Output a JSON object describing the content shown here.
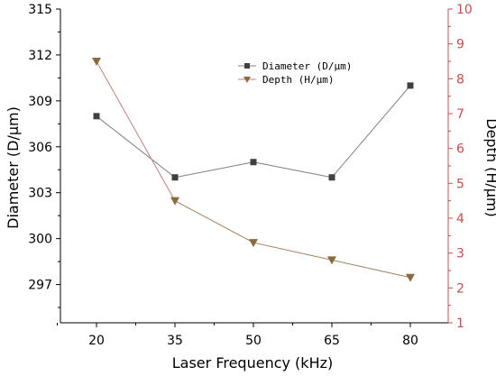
{
  "chart_data": {
    "type": "line",
    "title": "",
    "xlabel": "Laser Frequency (kHz)",
    "categories": [
      "20",
      "35",
      "50",
      "65",
      "80"
    ],
    "y_left": {
      "label": "Diameter (D/μm)",
      "lim": [
        294.5,
        315
      ],
      "ticks": [
        297,
        300,
        303,
        306,
        309,
        312,
        315
      ],
      "color": "#000000"
    },
    "y_right": {
      "label": "Depth (H/μm)",
      "lim": [
        1,
        10
      ],
      "ticks": [
        1,
        2,
        3,
        4,
        5,
        6,
        7,
        8,
        9,
        10
      ],
      "color": "#c0504d"
    },
    "series": [
      {
        "name": "Diameter (D/μm)",
        "axis": "left",
        "values": [
          308,
          304,
          305,
          304,
          310
        ],
        "color": "#808080",
        "marker_color": "#404040",
        "marker": "square"
      },
      {
        "name": "Depth (H/μm)",
        "axis": "right",
        "values": [
          8.5,
          4.5,
          3.3,
          2.8,
          2.3
        ],
        "color": "#c08080",
        "line_color_after_first": "#a08060",
        "marker_color": "#8b6b3d",
        "marker": "triangle-down"
      }
    ],
    "legend_position": "top-center",
    "grid": false
  }
}
